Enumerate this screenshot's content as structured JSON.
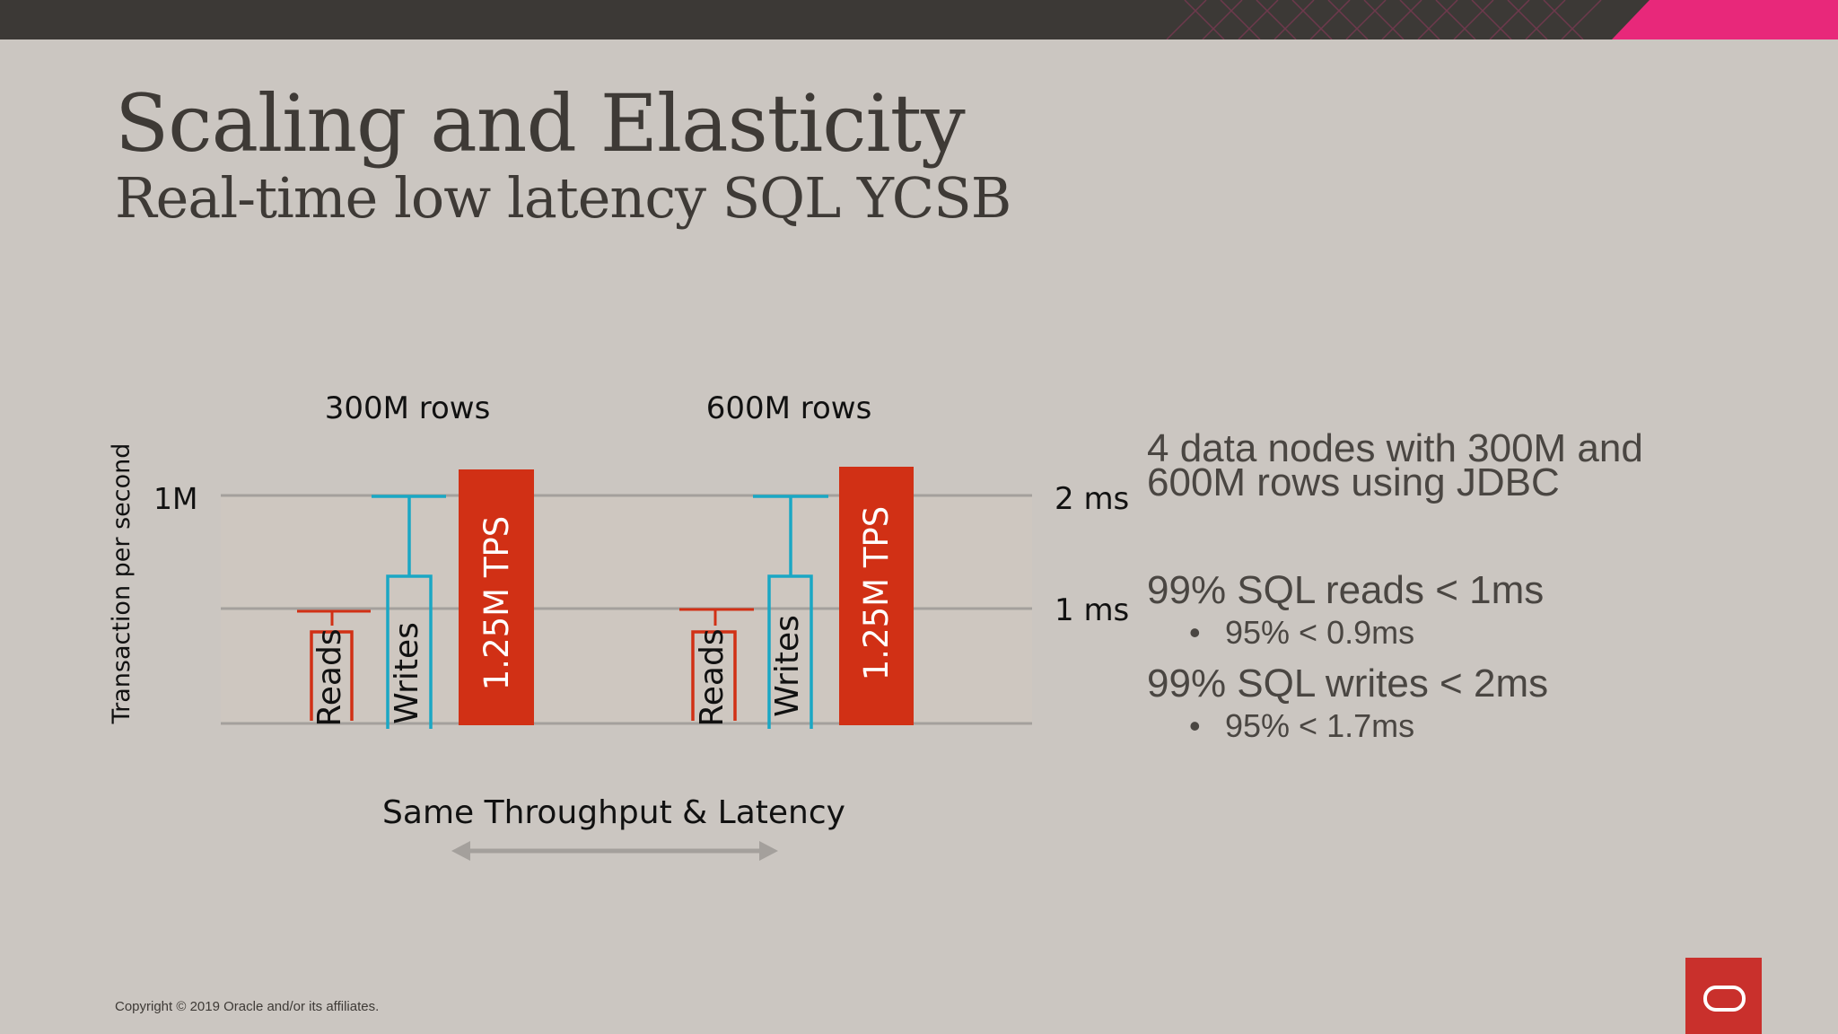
{
  "slide": {
    "title": "Scaling and Elasticity",
    "subtitle": "Real-time low latency SQL YCSB",
    "copyright": "Copyright © 2019 Oracle and/or its affiliates.",
    "colors": {
      "background": "#cbc6c1",
      "topbar": "#3c3936",
      "accent": "#e8287a",
      "logo": "#c9302c"
    },
    "logo_icon": "oracle-logo-icon"
  },
  "side": {
    "nodes_line1": "4 data nodes with 300M and",
    "nodes_line2": "600M rows using JDBC",
    "reads_head": "99% SQL reads < 1ms",
    "reads_bullet": "95% < 0.9ms",
    "writes_head": "99% SQL writes < 2ms",
    "writes_bullet": "95% < 1.7ms",
    "bullet_glyph": "•"
  },
  "chart_data": {
    "type": "bar",
    "ylabel": "Transaction per second",
    "left_axis_label": "1M",
    "right_axis_ticks": [
      "2 ms",
      "1 ms"
    ],
    "right_axis_values_ms": [
      2,
      1
    ],
    "groups": [
      {
        "label": "300M rows",
        "tps_label": "1.25M TPS",
        "tps": 1250000,
        "reads": {
          "label": "Reads",
          "p95_ms": 0.9,
          "p99_ms": 1.0
        },
        "writes": {
          "label": "Writes",
          "p95_ms": 1.7,
          "p99_ms": 2.0
        }
      },
      {
        "label": "600M rows",
        "tps_label": "1.25M TPS",
        "tps": 1250000,
        "reads": {
          "label": "Reads",
          "p95_ms": 0.9,
          "p99_ms": 1.0
        },
        "writes": {
          "label": "Writes",
          "p95_ms": 1.7,
          "p99_ms": 2.0
        }
      }
    ],
    "comparison_label": "Same Throughput & Latency",
    "colors": {
      "tps_bar": "#d13015",
      "reads": "#d13015",
      "writes": "#1aa7c4",
      "grid": "#a4a09c"
    }
  }
}
